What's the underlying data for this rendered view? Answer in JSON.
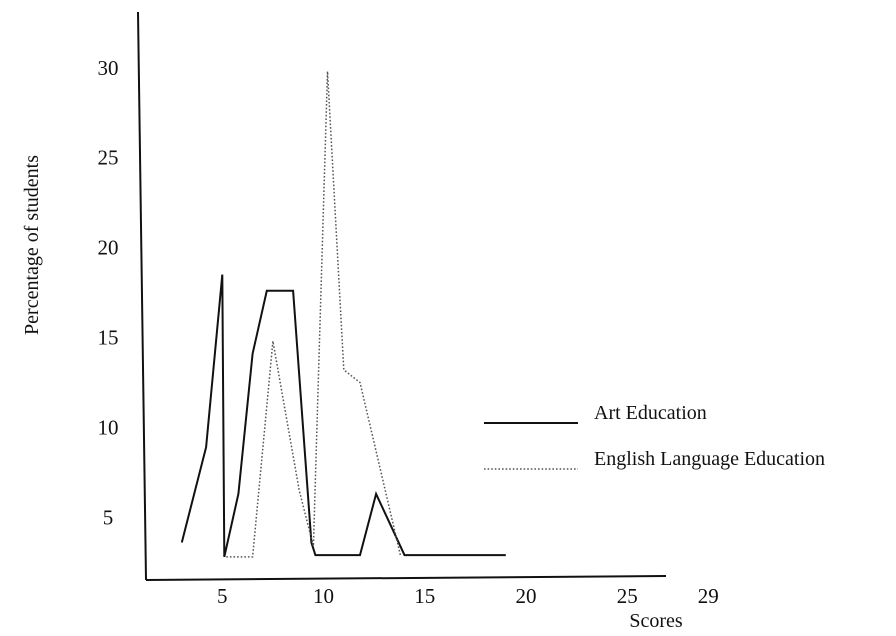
{
  "chart_data": {
    "type": "line",
    "title": "",
    "xlabel": "Scores",
    "ylabel": "Percentage of students",
    "x_ticks": [
      "5",
      "10",
      "15",
      "20",
      "25",
      "29"
    ],
    "y_ticks": [
      "5",
      "10",
      "15",
      "20",
      "25",
      "30"
    ],
    "xlim": [
      1.5,
      29
    ],
    "ylim": [
      2.8,
      31.5
    ],
    "grid": false,
    "legend_position": "right",
    "series": [
      {
        "name": "Art Education",
        "style": "solid",
        "color": "#111111",
        "x": [
          3,
          4.2,
          5,
          5.1,
          5.8,
          6.5,
          7.2,
          8.5,
          9.4,
          9.6,
          11.8,
          12.6,
          14,
          19
        ],
        "y": [
          3.6,
          8.9,
          18.5,
          2.8,
          6.3,
          14.1,
          17.6,
          17.6,
          3.6,
          2.9,
          2.9,
          6.3,
          2.9,
          2.9
        ]
      },
      {
        "name": "English Language Education",
        "style": "dotted",
        "color": "#555555",
        "x": [
          5.2,
          6.5,
          7.5,
          8.8,
          9.5,
          10.2,
          11,
          11.8,
          13.8
        ],
        "y": [
          2.8,
          2.8,
          14.8,
          6.5,
          3.4,
          29.8,
          13.2,
          12.5,
          2.9
        ]
      }
    ]
  }
}
